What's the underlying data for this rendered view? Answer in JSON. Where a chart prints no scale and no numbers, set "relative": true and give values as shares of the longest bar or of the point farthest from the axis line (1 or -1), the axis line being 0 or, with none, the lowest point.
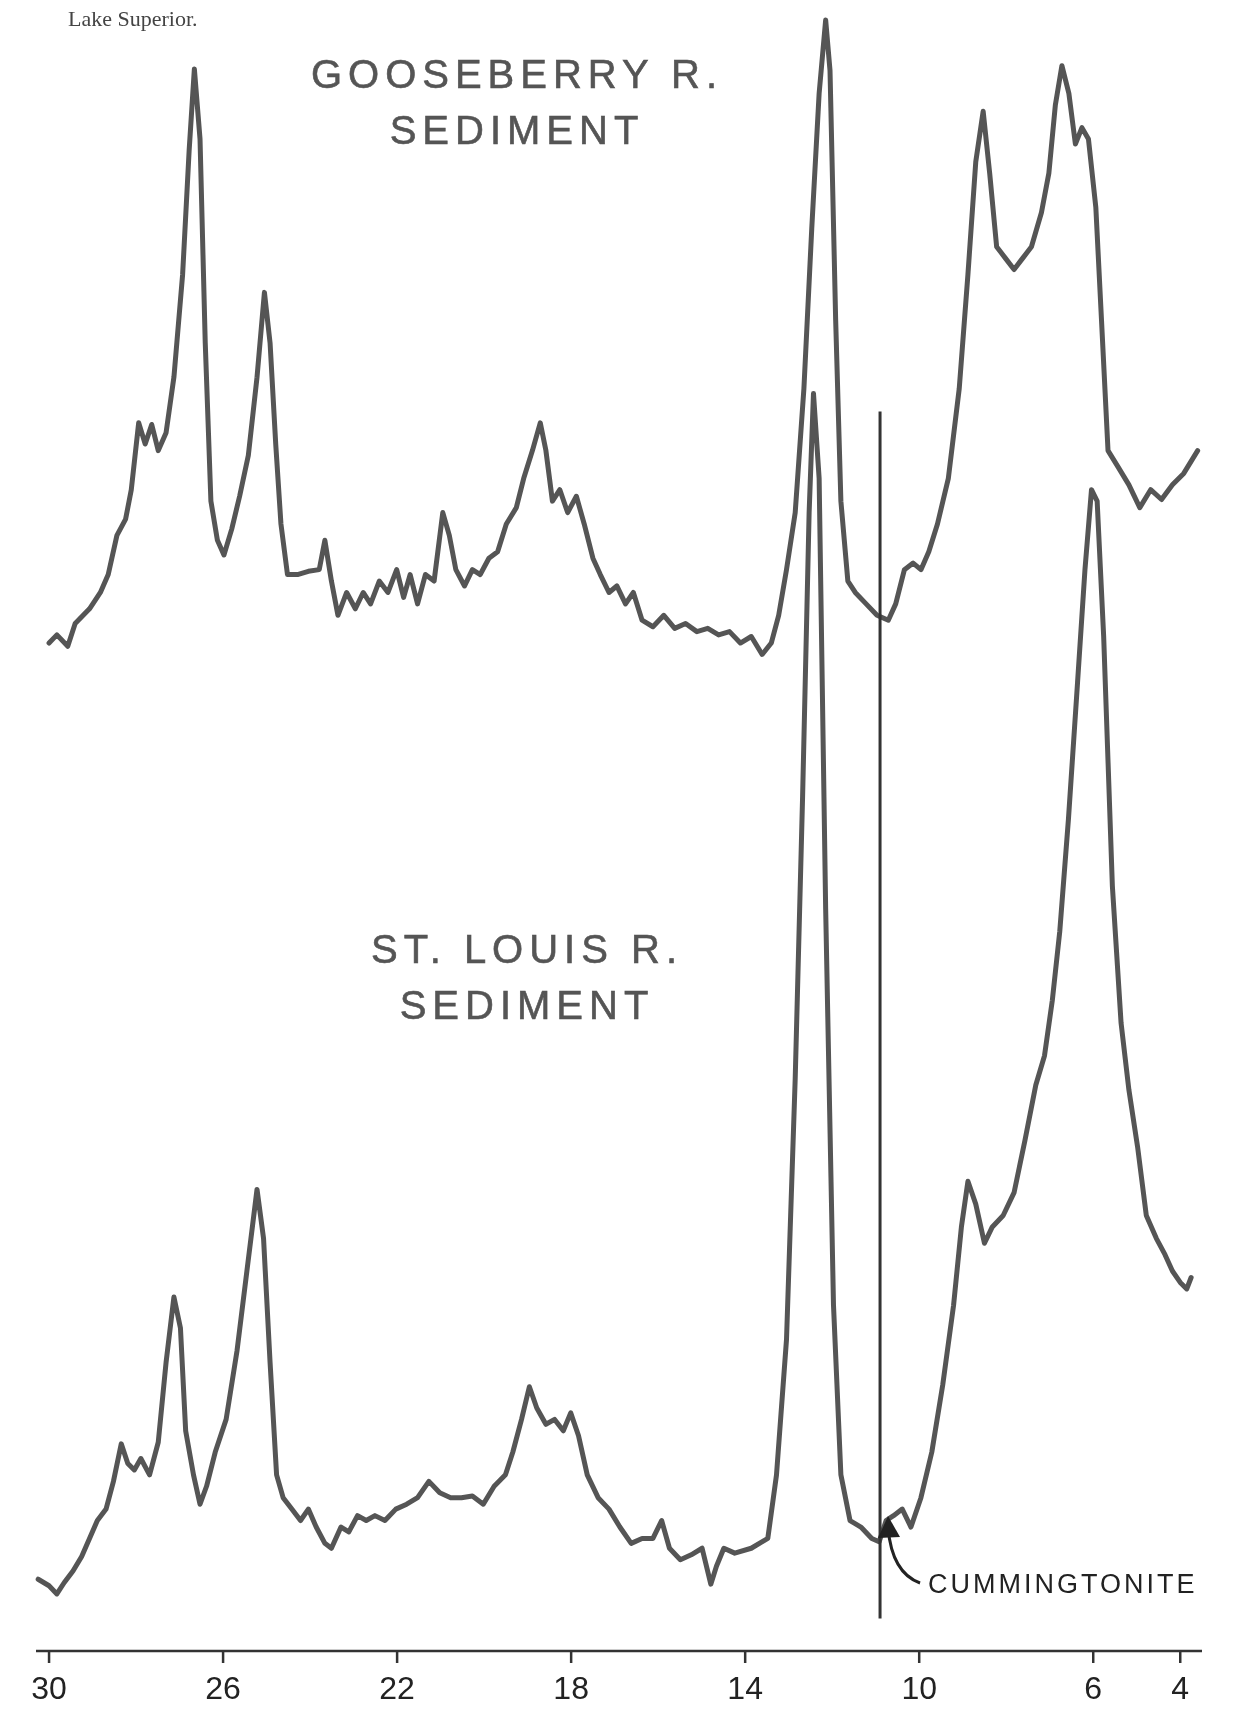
{
  "chart_data": {
    "type": "line",
    "relative": true,
    "annotations": [
      "Lake Superior."
    ],
    "xlim": [
      30.3,
      3.5
    ],
    "xticks": [
      30,
      26,
      22,
      18,
      14,
      10,
      6,
      4
    ],
    "grid": false,
    "line_style": "solid",
    "ref_lines": [
      {
        "axis": "x",
        "value": 10.9,
        "label": "CUMMINGTONITE",
        "color": "#333333"
      }
    ],
    "series": [
      {
        "name": "GOOSEBERRY R.\nSEDIMENT",
        "color": "#555555",
        "x": [
          30.0,
          29.82,
          29.57,
          29.4,
          29.07,
          28.82,
          28.64,
          28.44,
          28.24,
          28.11,
          27.94,
          27.79,
          27.64,
          27.49,
          27.31,
          27.13,
          26.93,
          26.78,
          26.66,
          26.53,
          26.41,
          26.28,
          26.13,
          25.98,
          25.8,
          25.62,
          25.42,
          25.22,
          25.05,
          24.92,
          24.79,
          24.67,
          24.52,
          24.29,
          24.04,
          23.79,
          23.66,
          23.51,
          23.36,
          23.16,
          22.96,
          22.78,
          22.61,
          22.41,
          22.21,
          22.01,
          21.85,
          21.7,
          21.53,
          21.35,
          21.15,
          20.95,
          20.8,
          20.65,
          20.45,
          20.27,
          20.09,
          19.89,
          19.69,
          19.49,
          19.26,
          19.09,
          18.89,
          18.71,
          18.58,
          18.43,
          18.26,
          18.08,
          17.88,
          17.7,
          17.5,
          17.33,
          17.13,
          16.95,
          16.75,
          16.57,
          16.37,
          16.12,
          15.87,
          15.62,
          15.37,
          15.11,
          14.86,
          14.61,
          14.36,
          14.11,
          13.86,
          13.61,
          13.4,
          13.23,
          13.05,
          12.85,
          12.65,
          12.47,
          12.3,
          12.15,
          12.05,
          11.92,
          11.8,
          11.64,
          11.47,
          11.22,
          10.97,
          10.71,
          10.54,
          10.34,
          10.14,
          9.96,
          9.78,
          9.58,
          9.33,
          9.08,
          8.88,
          8.7,
          8.53,
          8.38,
          8.22,
          8.02,
          7.82,
          7.62,
          7.42,
          7.19,
          7.02,
          6.87,
          6.72,
          6.56,
          6.41,
          6.26,
          6.11,
          5.94,
          5.81,
          5.66,
          5.43,
          5.18,
          4.93,
          4.68,
          4.43,
          4.18,
          3.92,
          3.6
        ],
        "values": [
          0.618,
          0.623,
          0.616,
          0.63,
          0.639,
          0.649,
          0.66,
          0.684,
          0.694,
          0.712,
          0.753,
          0.74,
          0.752,
          0.736,
          0.747,
          0.781,
          0.844,
          0.92,
          0.97,
          0.927,
          0.802,
          0.705,
          0.681,
          0.672,
          0.688,
          0.708,
          0.733,
          0.781,
          0.833,
          0.802,
          0.74,
          0.691,
          0.66,
          0.66,
          0.662,
          0.663,
          0.681,
          0.656,
          0.635,
          0.649,
          0.639,
          0.649,
          0.642,
          0.656,
          0.649,
          0.663,
          0.646,
          0.66,
          0.642,
          0.66,
          0.656,
          0.698,
          0.684,
          0.663,
          0.653,
          0.663,
          0.66,
          0.67,
          0.674,
          0.691,
          0.701,
          0.719,
          0.736,
          0.753,
          0.736,
          0.705,
          0.712,
          0.698,
          0.708,
          0.691,
          0.67,
          0.66,
          0.649,
          0.653,
          0.642,
          0.649,
          0.632,
          0.628,
          0.635,
          0.627,
          0.63,
          0.625,
          0.627,
          0.623,
          0.625,
          0.618,
          0.622,
          0.611,
          0.618,
          0.635,
          0.663,
          0.698,
          0.774,
          0.872,
          0.955,
          1.0,
          0.969,
          0.816,
          0.705,
          0.656,
          0.649,
          0.642,
          0.635,
          0.632,
          0.642,
          0.663,
          0.667,
          0.663,
          0.674,
          0.691,
          0.719,
          0.774,
          0.844,
          0.913,
          0.944,
          0.906,
          0.861,
          0.854,
          0.847,
          0.854,
          0.861,
          0.882,
          0.906,
          0.948,
          0.972,
          0.955,
          0.924,
          0.934,
          0.927,
          0.885,
          0.816,
          0.736,
          0.726,
          0.715,
          0.701,
          0.712,
          0.706,
          0.715,
          0.722,
          0.736
        ]
      },
      {
        "name": "ST. LOUIS R.\nSEDIMENT",
        "color": "#555555",
        "x": [
          30.25,
          30.0,
          29.82,
          29.65,
          29.45,
          29.25,
          29.07,
          28.89,
          28.69,
          28.52,
          28.34,
          28.19,
          28.04,
          27.89,
          27.69,
          27.49,
          27.31,
          27.13,
          26.98,
          26.86,
          26.68,
          26.53,
          26.38,
          26.18,
          25.93,
          25.68,
          25.42,
          25.22,
          25.07,
          24.92,
          24.77,
          24.62,
          24.42,
          24.22,
          24.04,
          23.86,
          23.66,
          23.51,
          23.29,
          23.11,
          22.91,
          22.71,
          22.51,
          22.28,
          22.03,
          21.78,
          21.53,
          21.27,
          21.02,
          20.77,
          20.52,
          20.27,
          20.02,
          19.77,
          19.51,
          19.34,
          19.14,
          18.96,
          18.79,
          18.58,
          18.38,
          18.18,
          18.01,
          17.83,
          17.63,
          17.38,
          17.13,
          16.88,
          16.62,
          16.37,
          16.12,
          15.92,
          15.74,
          15.49,
          15.24,
          14.99,
          14.79,
          14.66,
          14.49,
          14.24,
          13.86,
          13.48,
          13.28,
          13.05,
          12.85,
          12.68,
          12.53,
          12.43,
          12.3,
          12.15,
          11.97,
          11.8,
          11.59,
          11.34,
          11.09,
          10.92,
          10.76,
          10.59,
          10.39,
          10.19,
          9.96,
          9.71,
          9.46,
          9.21,
          9.03,
          8.88,
          8.7,
          8.5,
          8.32,
          8.07,
          7.82,
          7.57,
          7.32,
          7.12,
          6.94,
          6.77,
          6.57,
          6.36,
          6.19,
          6.04,
          5.91,
          5.76,
          5.56,
          5.36,
          5.18,
          4.98,
          4.78,
          4.55,
          4.35,
          4.18,
          4.0,
          3.85,
          3.75
        ],
        "values": [
          0.044,
          0.04,
          0.035,
          0.042,
          0.049,
          0.058,
          0.069,
          0.08,
          0.087,
          0.104,
          0.127,
          0.115,
          0.111,
          0.118,
          0.108,
          0.128,
          0.177,
          0.217,
          0.198,
          0.135,
          0.108,
          0.09,
          0.101,
          0.122,
          0.142,
          0.184,
          0.24,
          0.283,
          0.253,
          0.177,
          0.108,
          0.094,
          0.087,
          0.08,
          0.087,
          0.076,
          0.066,
          0.063,
          0.076,
          0.073,
          0.083,
          0.08,
          0.083,
          0.08,
          0.087,
          0.09,
          0.094,
          0.104,
          0.097,
          0.094,
          0.094,
          0.095,
          0.09,
          0.101,
          0.108,
          0.122,
          0.142,
          0.162,
          0.149,
          0.139,
          0.142,
          0.135,
          0.146,
          0.132,
          0.108,
          0.094,
          0.087,
          0.076,
          0.066,
          0.069,
          0.069,
          0.08,
          0.063,
          0.056,
          0.059,
          0.063,
          0.041,
          0.052,
          0.063,
          0.06,
          0.063,
          0.069,
          0.108,
          0.191,
          0.351,
          0.524,
          0.698,
          0.771,
          0.719,
          0.455,
          0.212,
          0.108,
          0.08,
          0.076,
          0.069,
          0.067,
          0.08,
          0.083,
          0.087,
          0.076,
          0.094,
          0.122,
          0.163,
          0.212,
          0.26,
          0.288,
          0.274,
          0.25,
          0.26,
          0.267,
          0.281,
          0.313,
          0.347,
          0.365,
          0.399,
          0.441,
          0.51,
          0.594,
          0.663,
          0.712,
          0.705,
          0.622,
          0.469,
          0.385,
          0.344,
          0.309,
          0.267,
          0.253,
          0.243,
          0.233,
          0.226,
          0.222,
          0.229
        ]
      }
    ]
  }
}
